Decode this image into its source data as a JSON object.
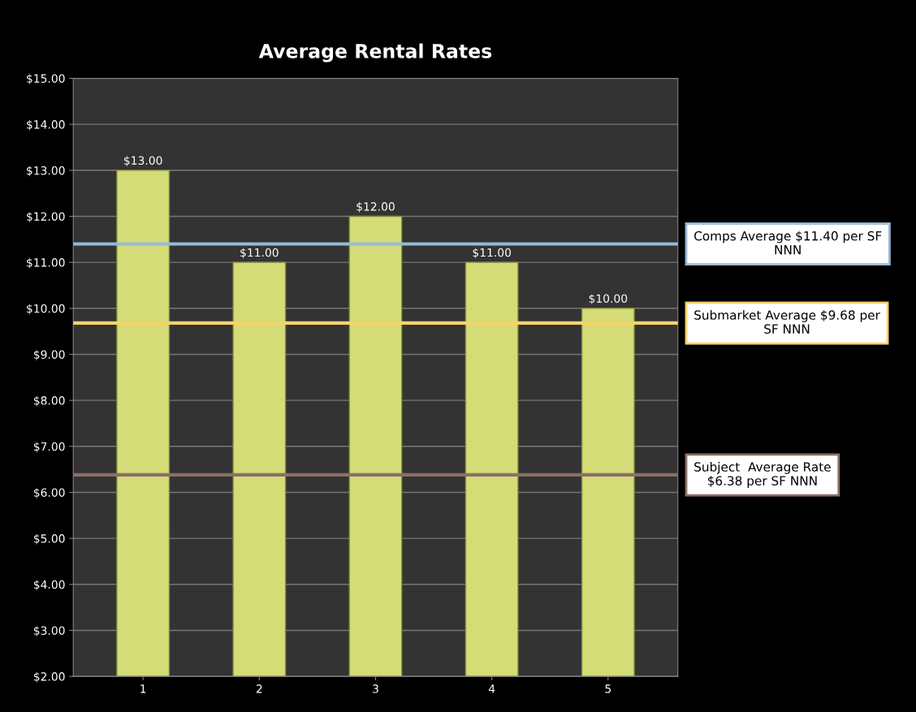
{
  "chart_data": {
    "type": "bar",
    "title": "Average Rental Rates",
    "categories": [
      "1",
      "2",
      "3",
      "4",
      "5"
    ],
    "values": [
      13,
      11,
      12,
      11,
      10
    ],
    "value_labels": [
      "$13.00",
      "$11.00",
      "$12.00",
      "$11.00",
      "$10.00"
    ],
    "color": "#d4dc78",
    "ylim": [
      2,
      15
    ],
    "yticks": [
      {
        "value": 2,
        "label": "$2.00"
      },
      {
        "value": 3,
        "label": "$3.00"
      },
      {
        "value": 4,
        "label": "$4.00"
      },
      {
        "value": 5,
        "label": "$5.00"
      },
      {
        "value": 6,
        "label": "$6.00"
      },
      {
        "value": 7,
        "label": "$7.00"
      },
      {
        "value": 8,
        "label": "$8.00"
      },
      {
        "value": 9,
        "label": "$9.00"
      },
      {
        "value": 10,
        "label": "$10.00"
      },
      {
        "value": 11,
        "label": "$11.00"
      },
      {
        "value": 12,
        "label": "$12.00"
      },
      {
        "value": 13,
        "label": "$13.00"
      },
      {
        "value": 14,
        "label": "$14.00"
      },
      {
        "value": 15,
        "label": "$15.00"
      }
    ],
    "grid": "y",
    "ref_lines": [
      {
        "axis": "y",
        "value": 11.4,
        "label": "Comps Average $11.40 per SF\nNNN",
        "color": "#9ab8d6"
      },
      {
        "axis": "y",
        "value": 9.68,
        "label": "Submarket Average $9.68 per\nSF NNN",
        "color": "#f5d36b"
      },
      {
        "axis": "y",
        "value": 6.38,
        "label": "Subject  Average Rate\n$6.38 per SF NNN",
        "color": "#8b6f66"
      }
    ]
  }
}
